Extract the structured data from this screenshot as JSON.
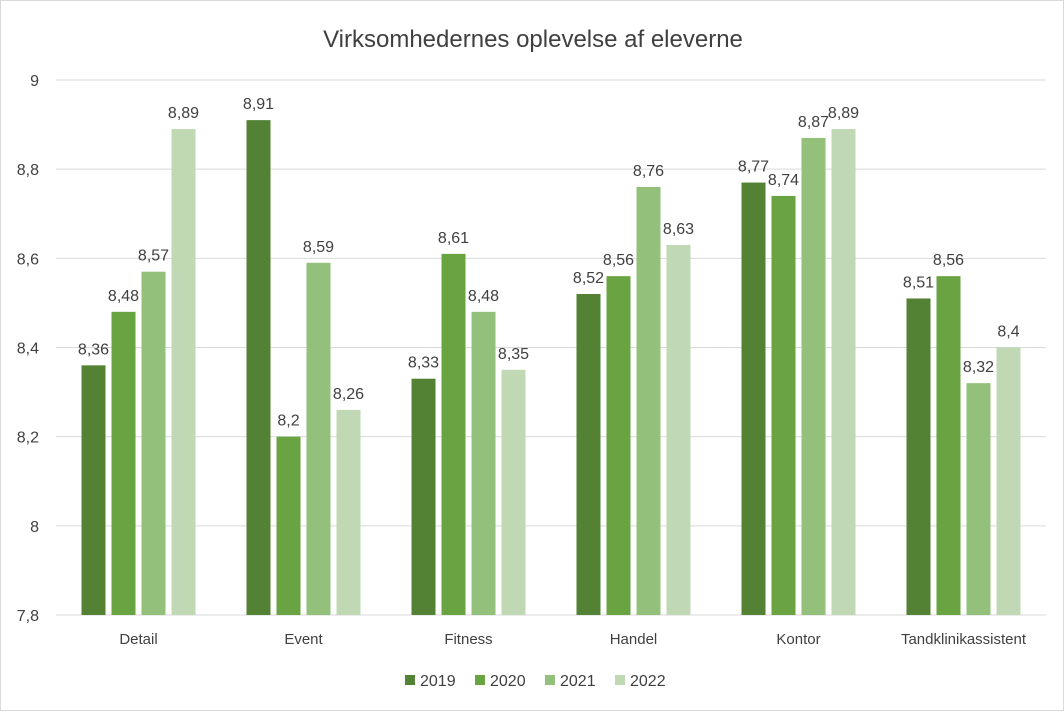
{
  "chart_data": {
    "type": "bar",
    "title": "Virksomhedernes oplevelse af eleverne",
    "xlabel": "",
    "ylabel": "",
    "ylim": [
      7.8,
      9
    ],
    "yticks": [
      "7,8",
      "8",
      "8,2",
      "8,4",
      "8,6",
      "8,8",
      "9"
    ],
    "grid": true,
    "legend_position": "bottom",
    "categories": [
      "Detail",
      "Event",
      "Fitness",
      "Handel",
      "Kontor",
      "Tandklinikassistent"
    ],
    "series": [
      {
        "name": "2019",
        "color": "#548235",
        "values": [
          8.36,
          8.91,
          8.33,
          8.52,
          8.77,
          8.51
        ],
        "labels": [
          "8,36",
          "8,91",
          "8,33",
          "8,52",
          "8,77",
          "8,51"
        ]
      },
      {
        "name": "2020",
        "color": "#6aa342",
        "values": [
          8.48,
          8.2,
          8.61,
          8.56,
          8.74,
          8.56
        ],
        "labels": [
          "8,48",
          "8,2",
          "8,61",
          "8,56",
          "8,74",
          "8,56"
        ]
      },
      {
        "name": "2021",
        "color": "#93c07b",
        "values": [
          8.57,
          8.59,
          8.48,
          8.76,
          8.87,
          8.32
        ],
        "labels": [
          "8,57",
          "8,59",
          "8,48",
          "8,76",
          "8,87",
          "8,32"
        ]
      },
      {
        "name": "2022",
        "color": "#c0d9b4",
        "values": [
          8.89,
          8.26,
          8.35,
          8.63,
          8.89,
          8.4
        ],
        "labels": [
          "8,89",
          "8,26",
          "8,35",
          "8,63",
          "8,89",
          "8,4"
        ]
      }
    ]
  }
}
